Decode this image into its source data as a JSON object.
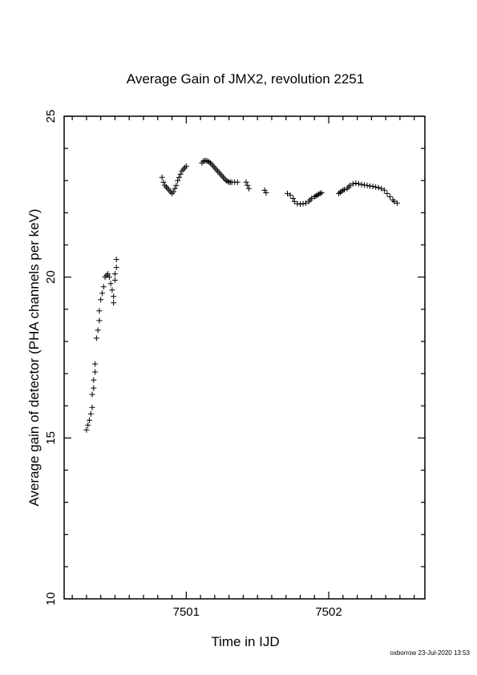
{
  "chart_data": {
    "type": "scatter",
    "title": "Average Gain of JMX2, revolution 2251",
    "xlabel": "Time in IJD",
    "ylabel": "Average gain of detector (PHA channels per keV)",
    "xlim": [
      7500.143,
      7502.675
    ],
    "ylim": [
      10,
      25
    ],
    "x_ticks": [
      7501,
      7502
    ],
    "y_ticks": [
      10,
      15,
      20,
      25
    ],
    "marker": "plus",
    "grid": false,
    "points": [
      [
        7500.3,
        15.25
      ],
      [
        7500.31,
        15.4
      ],
      [
        7500.32,
        15.55
      ],
      [
        7500.33,
        15.75
      ],
      [
        7500.34,
        15.95
      ],
      [
        7500.34,
        16.35
      ],
      [
        7500.35,
        16.55
      ],
      [
        7500.35,
        16.8
      ],
      [
        7500.36,
        17.05
      ],
      [
        7500.36,
        17.3
      ],
      [
        7500.37,
        18.1
      ],
      [
        7500.38,
        18.35
      ],
      [
        7500.39,
        18.65
      ],
      [
        7500.39,
        18.95
      ],
      [
        7500.4,
        19.3
      ],
      [
        7500.41,
        19.5
      ],
      [
        7500.42,
        19.7
      ],
      [
        7500.43,
        20.0
      ],
      [
        7500.44,
        20.05
      ],
      [
        7500.45,
        20.1
      ],
      [
        7500.46,
        20.0
      ],
      [
        7500.47,
        19.8
      ],
      [
        7500.48,
        19.6
      ],
      [
        7500.49,
        19.4
      ],
      [
        7500.49,
        19.2
      ],
      [
        7500.5,
        19.9
      ],
      [
        7500.5,
        20.1
      ],
      [
        7500.51,
        20.3
      ],
      [
        7500.51,
        20.55
      ],
      [
        7500.83,
        23.1
      ],
      [
        7500.84,
        22.95
      ],
      [
        7500.85,
        22.85
      ],
      [
        7500.86,
        22.8
      ],
      [
        7500.87,
        22.75
      ],
      [
        7500.88,
        22.7
      ],
      [
        7500.89,
        22.65
      ],
      [
        7500.9,
        22.6
      ],
      [
        7500.91,
        22.65
      ],
      [
        7500.92,
        22.75
      ],
      [
        7500.93,
        22.85
      ],
      [
        7500.94,
        23.0
      ],
      [
        7500.95,
        23.1
      ],
      [
        7500.96,
        23.2
      ],
      [
        7500.97,
        23.3
      ],
      [
        7500.98,
        23.35
      ],
      [
        7500.99,
        23.4
      ],
      [
        7501.0,
        23.45
      ],
      [
        7501.11,
        23.55
      ],
      [
        7501.12,
        23.6
      ],
      [
        7501.13,
        23.62
      ],
      [
        7501.14,
        23.62
      ],
      [
        7501.15,
        23.6
      ],
      [
        7501.16,
        23.58
      ],
      [
        7501.17,
        23.55
      ],
      [
        7501.18,
        23.5
      ],
      [
        7501.19,
        23.45
      ],
      [
        7501.2,
        23.4
      ],
      [
        7501.21,
        23.35
      ],
      [
        7501.22,
        23.3
      ],
      [
        7501.23,
        23.25
      ],
      [
        7501.24,
        23.2
      ],
      [
        7501.25,
        23.15
      ],
      [
        7501.26,
        23.1
      ],
      [
        7501.27,
        23.05
      ],
      [
        7501.28,
        23.0
      ],
      [
        7501.29,
        22.98
      ],
      [
        7501.3,
        22.95
      ],
      [
        7501.31,
        22.95
      ],
      [
        7501.32,
        22.95
      ],
      [
        7501.34,
        22.95
      ],
      [
        7501.36,
        22.95
      ],
      [
        7501.42,
        22.95
      ],
      [
        7501.43,
        22.85
      ],
      [
        7501.44,
        22.75
      ],
      [
        7501.55,
        22.7
      ],
      [
        7501.56,
        22.62
      ],
      [
        7501.71,
        22.6
      ],
      [
        7501.73,
        22.55
      ],
      [
        7501.75,
        22.45
      ],
      [
        7501.76,
        22.35
      ],
      [
        7501.78,
        22.28
      ],
      [
        7501.8,
        22.27
      ],
      [
        7501.82,
        22.28
      ],
      [
        7501.84,
        22.3
      ],
      [
        7501.86,
        22.35
      ],
      [
        7501.87,
        22.4
      ],
      [
        7501.88,
        22.45
      ],
      [
        7501.9,
        22.5
      ],
      [
        7501.91,
        22.52
      ],
      [
        7501.92,
        22.55
      ],
      [
        7501.93,
        22.58
      ],
      [
        7501.94,
        22.6
      ],
      [
        7501.95,
        22.62
      ],
      [
        7502.07,
        22.6
      ],
      [
        7502.08,
        22.63
      ],
      [
        7502.09,
        22.66
      ],
      [
        7502.1,
        22.7
      ],
      [
        7502.11,
        22.72
      ],
      [
        7502.13,
        22.75
      ],
      [
        7502.14,
        22.8
      ],
      [
        7502.15,
        22.85
      ],
      [
        7502.17,
        22.9
      ],
      [
        7502.19,
        22.92
      ],
      [
        7502.21,
        22.9
      ],
      [
        7502.23,
        22.88
      ],
      [
        7502.25,
        22.86
      ],
      [
        7502.27,
        22.85
      ],
      [
        7502.29,
        22.83
      ],
      [
        7502.31,
        22.82
      ],
      [
        7502.33,
        22.8
      ],
      [
        7502.35,
        22.78
      ],
      [
        7502.37,
        22.75
      ],
      [
        7502.39,
        22.7
      ],
      [
        7502.41,
        22.6
      ],
      [
        7502.43,
        22.5
      ],
      [
        7502.45,
        22.4
      ],
      [
        7502.46,
        22.35
      ],
      [
        7502.48,
        22.3
      ]
    ]
  },
  "footer": {
    "text": "oxborrow 23-Jul-2020 13:53"
  }
}
